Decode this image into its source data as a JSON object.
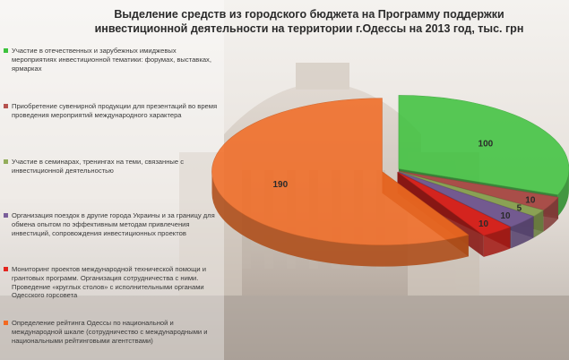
{
  "title": "Выделение средств из городского бюджета на Программу поддержки\nинвестиционной деятельности на территории г.Одессы на 2013 год, тыс. грн",
  "colors": {
    "green": "#3cc23c",
    "brown": "#b5524e",
    "olive": "#93ad5a",
    "purple": "#7a5f9a",
    "red": "#e3261f",
    "orange": "#f26a22"
  },
  "chart_data": {
    "type": "pie",
    "title": "Выделение средств из городского бюджета на Программу поддержки инвестиционной деятельности на территории г.Одессы на 2013 год, тыс. грн",
    "legend_position": "left",
    "slices": [
      {
        "label": "Участие в отечественных и зарубежных имиджевых мероприятиях инвестиционной тематики: форумах, выставках, ярмарках",
        "value": 100,
        "color": "#3cc23c"
      },
      {
        "label": "Приобретение сувенирной продукции для презентаций во время проведения мероприятий международного характера",
        "value": 10,
        "color": "#b5524e"
      },
      {
        "label": "Участие в семинарах, тренингах на теми, связанные с инвестиционной деятельностью",
        "value": 5,
        "color": "#93ad5a"
      },
      {
        "label": "Организация поездок в другие города Украины и за границу для обмена опытом по эффективным методам привлечения инвестиций, сопровождения инвестиционных проектов",
        "value": 10,
        "color": "#7a5f9a"
      },
      {
        "label": "Мониторинг проектов международной технической помощи и грантовых программ. Организация сотрудничества с ними. Проведение «круглых столов» с исполнительными органами Одесского горсовета",
        "value": 10,
        "color": "#e3261f"
      },
      {
        "label": "Определение рейтинга Одессы по национальной и международной шкале (сотрудничество с международными и национальными рейтинговыми агентствами)",
        "value": 190,
        "color": "#f26a22"
      }
    ]
  }
}
